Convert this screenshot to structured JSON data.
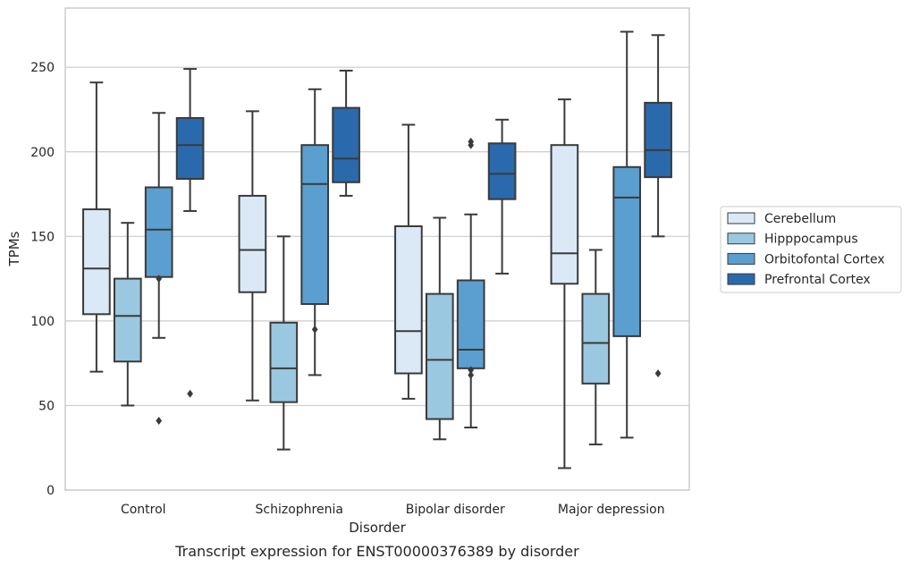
{
  "chart_data": {
    "type": "box",
    "caption": "Transcript expression for ENST00000376389 by disorder",
    "xlabel": "Disorder",
    "ylabel": "TPMs",
    "ylim": [
      0,
      285
    ],
    "yticks": [
      0,
      50,
      100,
      150,
      200,
      250
    ],
    "grid": "horizontal",
    "legend_position": "right",
    "categories": [
      "Control",
      "Schizophrenia",
      "Bipolar disorder",
      "Major depression"
    ],
    "series": [
      {
        "name": "Cerebellum",
        "color": "#dbe9f6",
        "boxes": [
          {
            "whisker_low": 70,
            "q1": 104,
            "median": 131,
            "q3": 166,
            "whisker_high": 241,
            "outliers": []
          },
          {
            "whisker_low": 53,
            "q1": 117,
            "median": 142,
            "q3": 174,
            "whisker_high": 224,
            "outliers": []
          },
          {
            "whisker_low": 54,
            "q1": 69,
            "median": 94,
            "q3": 156,
            "whisker_high": 216,
            "outliers": []
          },
          {
            "whisker_low": 13,
            "q1": 122,
            "median": 140,
            "q3": 204,
            "whisker_high": 231,
            "outliers": []
          }
        ]
      },
      {
        "name": "Hipppocampus",
        "color": "#9ac8e0",
        "boxes": [
          {
            "whisker_low": 50,
            "q1": 76,
            "median": 103,
            "q3": 125,
            "whisker_high": 158,
            "outliers": []
          },
          {
            "whisker_low": 24,
            "q1": 52,
            "median": 72,
            "q3": 99,
            "whisker_high": 150,
            "outliers": []
          },
          {
            "whisker_low": 30,
            "q1": 42,
            "median": 77,
            "q3": 116,
            "whisker_high": 161,
            "outliers": []
          },
          {
            "whisker_low": 27,
            "q1": 63,
            "median": 87,
            "q3": 116,
            "whisker_high": 142,
            "outliers": []
          }
        ]
      },
      {
        "name": "Orbitofontal Cortex",
        "color": "#5a9fcf",
        "boxes": [
          {
            "whisker_low": 90,
            "q1": 126,
            "median": 154,
            "q3": 179,
            "whisker_high": 223,
            "outliers": [
              125,
              41
            ]
          },
          {
            "whisker_low": 68,
            "q1": 110,
            "median": 181,
            "q3": 204,
            "whisker_high": 237,
            "outliers": [
              95
            ]
          },
          {
            "whisker_low": 37,
            "q1": 72,
            "median": 83,
            "q3": 124,
            "whisker_high": 163,
            "outliers": [
              206,
              204,
              71,
              68
            ]
          },
          {
            "whisker_low": 31,
            "q1": 91,
            "median": 173,
            "q3": 191,
            "whisker_high": 271,
            "outliers": []
          }
        ]
      },
      {
        "name": "Prefrontal Cortex",
        "color": "#2a69ac",
        "boxes": [
          {
            "whisker_low": 165,
            "q1": 184,
            "median": 204,
            "q3": 220,
            "whisker_high": 249,
            "outliers": [
              57
            ]
          },
          {
            "whisker_low": 174,
            "q1": 182,
            "median": 196,
            "q3": 226,
            "whisker_high": 248,
            "outliers": []
          },
          {
            "whisker_low": 128,
            "q1": 172,
            "median": 187,
            "q3": 205,
            "whisker_high": 219,
            "outliers": []
          },
          {
            "whisker_low": 150,
            "q1": 185,
            "median": 201,
            "q3": 229,
            "whisker_high": 269,
            "outliers": [
              69
            ]
          }
        ]
      }
    ]
  }
}
